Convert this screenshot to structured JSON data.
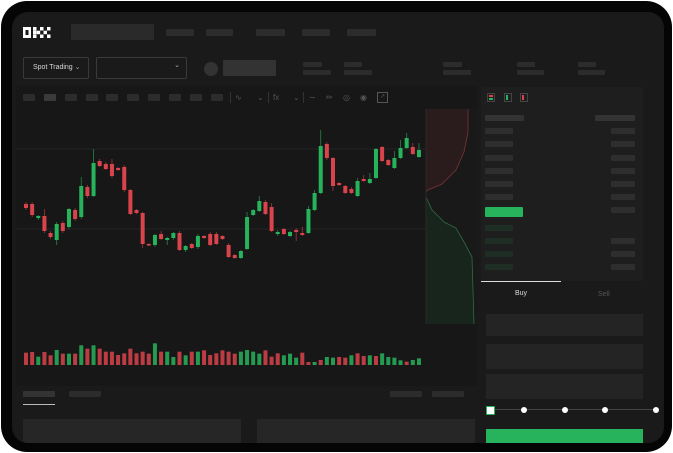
{
  "logo": {
    "text": "OKX"
  },
  "header": {
    "mode_select": "Spot Trading",
    "mode_chevron": "chevron-down-icon",
    "pair_chevron": "chevron-down-icon"
  },
  "chart_toolbar": {
    "icons": [
      "indicator-icon",
      "chevron-down-icon",
      "fx-icon",
      "chevron-down-icon",
      "line-icon",
      "pencil-icon",
      "camera-icon",
      "target-icon",
      "expand-icon"
    ]
  },
  "orderbook": {
    "view_icons": [
      "both-sides-icon",
      "bids-only-icon",
      "asks-only-icon"
    ]
  },
  "trade": {
    "tabs": [
      {
        "label": "Buy",
        "active": true
      },
      {
        "label": "Sell",
        "active": false
      }
    ],
    "slider_percent": 0,
    "slider_stops": [
      0,
      25,
      50,
      75,
      100
    ]
  },
  "colors": {
    "up": "#27b35b",
    "down": "#d9434b",
    "background": "#1a1a1a",
    "accent": "#27b35b"
  },
  "chart_data": {
    "type": "candlestick",
    "candles_ohlc": [
      [
        97,
        99,
        91,
        93
      ],
      [
        97,
        99,
        84,
        86
      ],
      [
        83,
        86,
        81,
        85
      ],
      [
        85,
        92,
        68,
        70
      ],
      [
        68,
        70,
        62,
        64
      ],
      [
        61,
        79,
        56,
        77
      ],
      [
        78,
        80,
        68,
        70
      ],
      [
        74,
        93,
        72,
        92
      ],
      [
        91,
        93,
        80,
        82
      ],
      [
        84,
        124,
        82,
        115
      ],
      [
        114,
        116,
        103,
        105
      ],
      [
        105,
        152,
        104,
        138
      ],
      [
        140,
        142,
        134,
        135
      ],
      [
        137,
        139,
        131,
        132
      ],
      [
        137,
        142,
        123,
        125
      ],
      [
        133,
        134,
        130,
        131
      ],
      [
        134,
        136,
        109,
        111
      ],
      [
        111,
        112,
        86,
        87
      ],
      [
        91,
        92,
        87,
        88
      ],
      [
        88,
        89,
        53,
        57
      ],
      [
        57,
        58,
        55,
        56
      ],
      [
        56,
        67,
        54,
        66
      ],
      [
        67,
        70,
        61,
        62
      ],
      [
        61,
        64,
        56,
        63
      ],
      [
        63,
        69,
        61,
        68
      ],
      [
        68,
        70,
        50,
        51
      ],
      [
        51,
        56,
        49,
        55
      ],
      [
        57,
        58,
        52,
        53
      ],
      [
        54,
        67,
        52,
        65
      ],
      [
        65,
        66,
        62,
        63
      ],
      [
        67,
        69,
        55,
        56
      ],
      [
        67,
        69,
        56,
        57
      ],
      [
        65,
        66,
        61,
        62
      ],
      [
        56,
        58,
        43,
        44
      ],
      [
        46,
        47,
        42,
        43
      ],
      [
        43,
        51,
        42,
        50
      ],
      [
        52,
        89,
        51,
        84
      ],
      [
        86,
        92,
        85,
        91
      ],
      [
        90,
        105,
        89,
        100
      ],
      [
        99,
        101,
        86,
        87
      ],
      [
        94,
        98,
        69,
        70
      ],
      [
        67,
        71,
        65,
        69
      ],
      [
        72,
        73,
        66,
        67
      ],
      [
        65,
        70,
        64,
        69
      ],
      [
        71,
        73,
        60,
        69
      ],
      [
        68,
        74,
        65,
        66
      ],
      [
        68,
        95,
        67,
        92
      ],
      [
        91,
        111,
        90,
        108
      ],
      [
        108,
        171,
        107,
        155
      ],
      [
        157,
        159,
        141,
        143
      ],
      [
        143,
        144,
        110,
        115
      ],
      [
        118,
        119,
        115,
        116
      ],
      [
        115,
        116,
        107,
        108
      ],
      [
        112,
        114,
        107,
        108
      ],
      [
        105,
        123,
        104,
        120
      ],
      [
        122,
        126,
        119,
        120
      ],
      [
        118,
        128,
        117,
        122
      ],
      [
        123,
        153,
        122,
        152
      ],
      [
        154,
        155,
        139,
        140
      ],
      [
        141,
        142,
        135,
        136
      ],
      [
        133,
        150,
        132,
        143
      ],
      [
        143,
        161,
        142,
        153
      ],
      [
        153,
        168,
        152,
        163
      ],
      [
        154,
        158,
        146,
        147
      ],
      [
        144,
        158,
        143,
        151
      ]
    ],
    "volume": [
      37,
      39,
      25,
      39,
      29,
      45,
      34,
      34,
      34,
      59,
      49,
      59,
      49,
      40,
      40,
      30,
      35,
      49,
      35,
      40,
      34,
      65,
      40,
      40,
      24,
      40,
      29,
      40,
      40,
      44,
      30,
      35,
      44,
      40,
      34,
      40,
      45,
      40,
      34,
      44,
      25,
      35,
      29,
      34,
      22,
      37,
      9,
      9,
      15,
      24,
      22,
      24,
      22,
      29,
      35,
      27,
      29,
      27,
      35,
      24,
      22,
      14,
      10,
      15,
      20
    ],
    "volume_up": [
      false,
      false,
      true,
      false,
      false,
      true,
      false,
      true,
      false,
      true,
      false,
      true,
      false,
      false,
      false,
      false,
      false,
      false,
      false,
      false,
      false,
      true,
      false,
      true,
      true,
      false,
      true,
      false,
      true,
      false,
      false,
      false,
      false,
      false,
      false,
      true,
      true,
      true,
      true,
      false,
      false,
      false,
      true,
      true,
      true,
      false,
      false,
      true,
      false,
      true,
      true,
      false,
      false,
      true,
      false,
      false,
      true,
      false,
      true,
      true,
      true,
      true,
      false,
      true,
      true
    ]
  }
}
